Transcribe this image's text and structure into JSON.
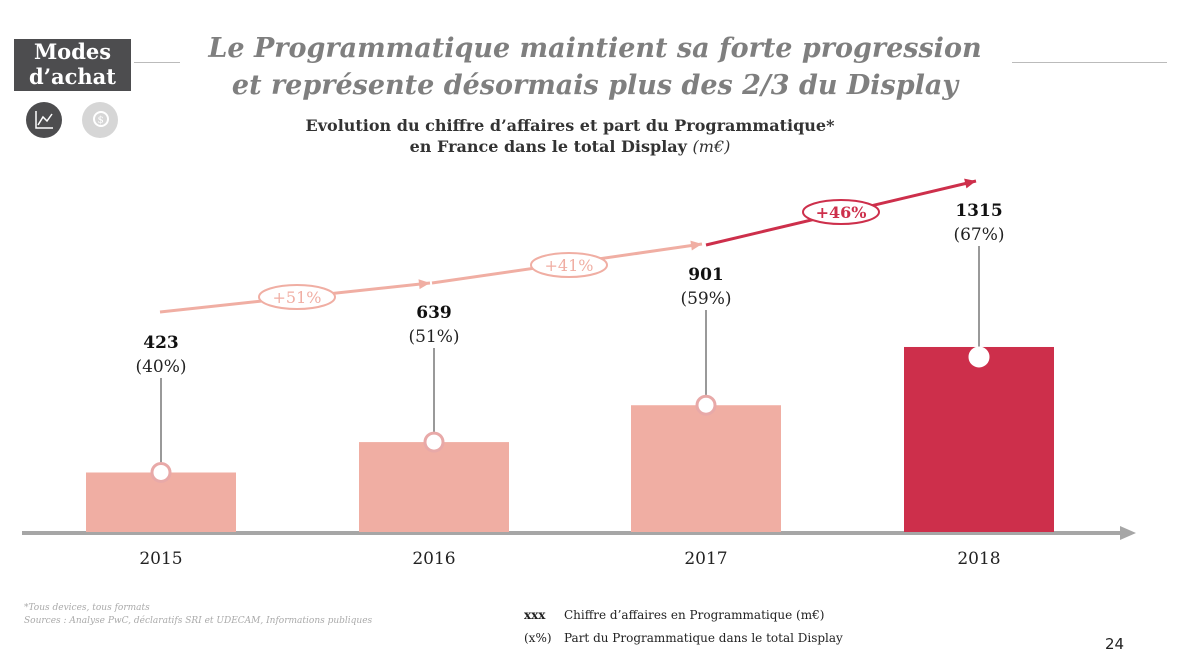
{
  "badge": "Modes d’achat",
  "badge_lines": [
    "Modes",
    "d’achat"
  ],
  "title_lines": [
    "Le Programmatique maintient sa forte progression",
    "et représente désormais plus des 2/3 du Display"
  ],
  "subtitle_line1": "Evolution du chiffre d’affaires et part du Programmatique*",
  "subtitle_line2": "en France dans le total Display",
  "subtitle_unit": "(m€)",
  "icons": [
    "chart-icon",
    "money-icon"
  ],
  "footnote": [
    "*Tous devices, tous formats",
    "Sources : Analyse PwC, déclaratifs SRI et UDECAM, Informations publiques"
  ],
  "legend": [
    {
      "key": "xxx",
      "label": "Chiffre d’affaires en Programmatique (m€)"
    },
    {
      "key": "(x%)",
      "label": "Part du Programmatique dans le total Display"
    }
  ],
  "page_number": "24",
  "chart_data": {
    "type": "bar",
    "categories": [
      "2015",
      "2016",
      "2017",
      "2018"
    ],
    "values": [
      423,
      639,
      901,
      1315
    ],
    "value_labels": [
      "423",
      "639",
      "901",
      "1315"
    ],
    "share_labels": [
      "(40%)",
      "(51%)",
      "(59%)",
      "(67%)"
    ],
    "shares": [
      40,
      51,
      59,
      67
    ],
    "growth_labels": [
      "+51%",
      "+41%",
      "+46%"
    ],
    "colors": {
      "bar": "#f0aea3",
      "highlight": "#cd2f4b",
      "axis": "#a6a6a6"
    }
  }
}
